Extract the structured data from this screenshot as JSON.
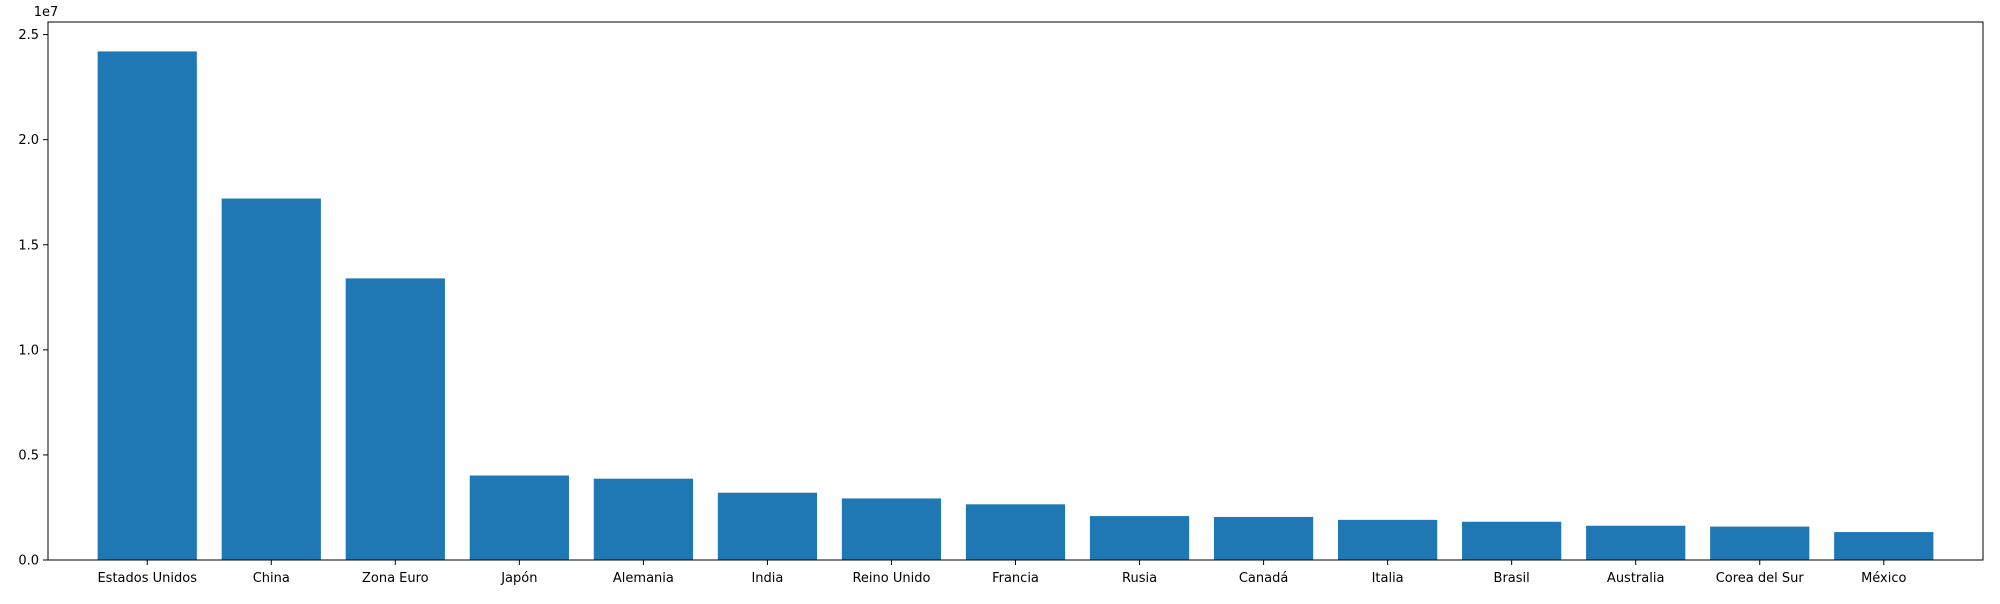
{
  "chart_data": {
    "type": "bar",
    "title": "",
    "xlabel": "",
    "ylabel": "",
    "offset_text": "1e7",
    "categories": [
      "Estados Unidos",
      "China",
      "Zona Euro",
      "Japón",
      "Alemania",
      "India",
      "Reino Unido",
      "Francia",
      "Rusia",
      "Canadá",
      "Italia",
      "Brasil",
      "Australia",
      "Corea del Sur",
      "México"
    ],
    "values": [
      24200000,
      17200000,
      13400000,
      4020000,
      3870000,
      3200000,
      2930000,
      2650000,
      2090000,
      2050000,
      1910000,
      1820000,
      1630000,
      1590000,
      1330000
    ],
    "ylim": [
      0,
      25600000
    ],
    "yticks": [
      0,
      5000000,
      10000000,
      15000000,
      20000000,
      25000000
    ],
    "ytick_labels": [
      "0.0",
      "0.5",
      "1.0",
      "1.5",
      "2.0",
      "2.5"
    ],
    "bar_color": "#1f77b4",
    "grid": false,
    "legend": "none"
  }
}
